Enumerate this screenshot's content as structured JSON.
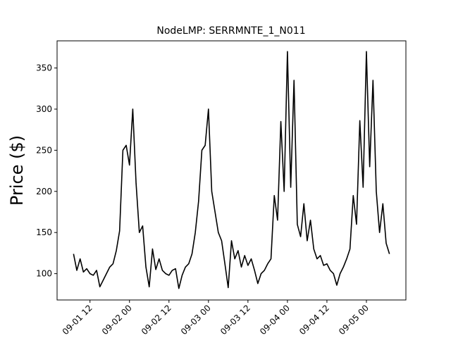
{
  "chart_data": {
    "type": "line",
    "title": "NodeLMP: SERRMNTE_1_N011",
    "ylabel": "Price ($)",
    "x": [
      "09-01 07",
      "09-01 08",
      "09-01 09",
      "09-01 10",
      "09-01 11",
      "09-01 12",
      "09-01 13",
      "09-01 14",
      "09-01 15",
      "09-01 16",
      "09-01 17",
      "09-01 18",
      "09-01 19",
      "09-01 20",
      "09-01 21",
      "09-01 22",
      "09-01 23",
      "09-02 00",
      "09-02 01",
      "09-02 02",
      "09-02 03",
      "09-02 04",
      "09-02 05",
      "09-02 06",
      "09-02 07",
      "09-02 08",
      "09-02 09",
      "09-02 10",
      "09-02 11",
      "09-02 12",
      "09-02 13",
      "09-02 14",
      "09-02 15",
      "09-02 16",
      "09-02 17",
      "09-02 18",
      "09-02 19",
      "09-02 20",
      "09-02 21",
      "09-02 22",
      "09-02 23",
      "09-03 00",
      "09-03 01",
      "09-03 02",
      "09-03 03",
      "09-03 04",
      "09-03 05",
      "09-03 06",
      "09-03 07",
      "09-03 08",
      "09-03 09",
      "09-03 10",
      "09-03 11",
      "09-03 12",
      "09-03 13",
      "09-03 14",
      "09-03 15",
      "09-03 16",
      "09-03 17",
      "09-03 18",
      "09-03 19",
      "09-03 20",
      "09-03 21",
      "09-03 22",
      "09-03 23",
      "09-04 00",
      "09-04 01",
      "09-04 02",
      "09-04 03",
      "09-04 04",
      "09-04 05",
      "09-04 06",
      "09-04 07",
      "09-04 08",
      "09-04 09",
      "09-04 10",
      "09-04 11",
      "09-04 12",
      "09-04 13",
      "09-04 14",
      "09-04 15",
      "09-04 16",
      "09-04 17",
      "09-04 18",
      "09-04 19",
      "09-04 20",
      "09-04 21",
      "09-04 22",
      "09-04 23",
      "09-05 00",
      "09-05 01",
      "09-05 02",
      "09-05 03",
      "09-05 04",
      "09-05 05",
      "09-05 06",
      "09-05 07"
    ],
    "series": [
      {
        "name": "SERRMNTE_1_N011",
        "color": "#000000",
        "values": [
          124,
          104,
          118,
          102,
          106,
          100,
          98,
          104,
          84,
          92,
          100,
          108,
          112,
          128,
          152,
          250,
          256,
          232,
          300,
          210,
          150,
          158,
          108,
          84,
          130,
          105,
          118,
          104,
          100,
          98,
          104,
          106,
          82,
          98,
          108,
          112,
          124,
          150,
          188,
          250,
          256,
          300,
          200,
          175,
          150,
          140,
          112,
          83,
          140,
          118,
          128,
          108,
          122,
          110,
          118,
          104,
          88,
          100,
          104,
          112,
          118,
          195,
          165,
          285,
          200,
          370,
          205,
          335,
          160,
          145,
          185,
          140,
          165,
          130,
          118,
          122,
          110,
          112,
          104,
          100,
          86,
          100,
          108,
          118,
          130,
          195,
          160,
          286,
          205,
          370,
          230,
          335,
          200,
          150,
          185,
          137,
          124
        ]
      }
    ],
    "xlim": [
      "09-01 02",
      "09-05 12"
    ],
    "xticks": [
      "09-01 12",
      "09-02 00",
      "09-02 12",
      "09-03 00",
      "09-03 12",
      "09-04 00",
      "09-04 12",
      "09-05 00"
    ],
    "ylim": [
      68,
      383
    ],
    "yticks": [
      100,
      150,
      200,
      250,
      300,
      350
    ],
    "grid": false
  }
}
